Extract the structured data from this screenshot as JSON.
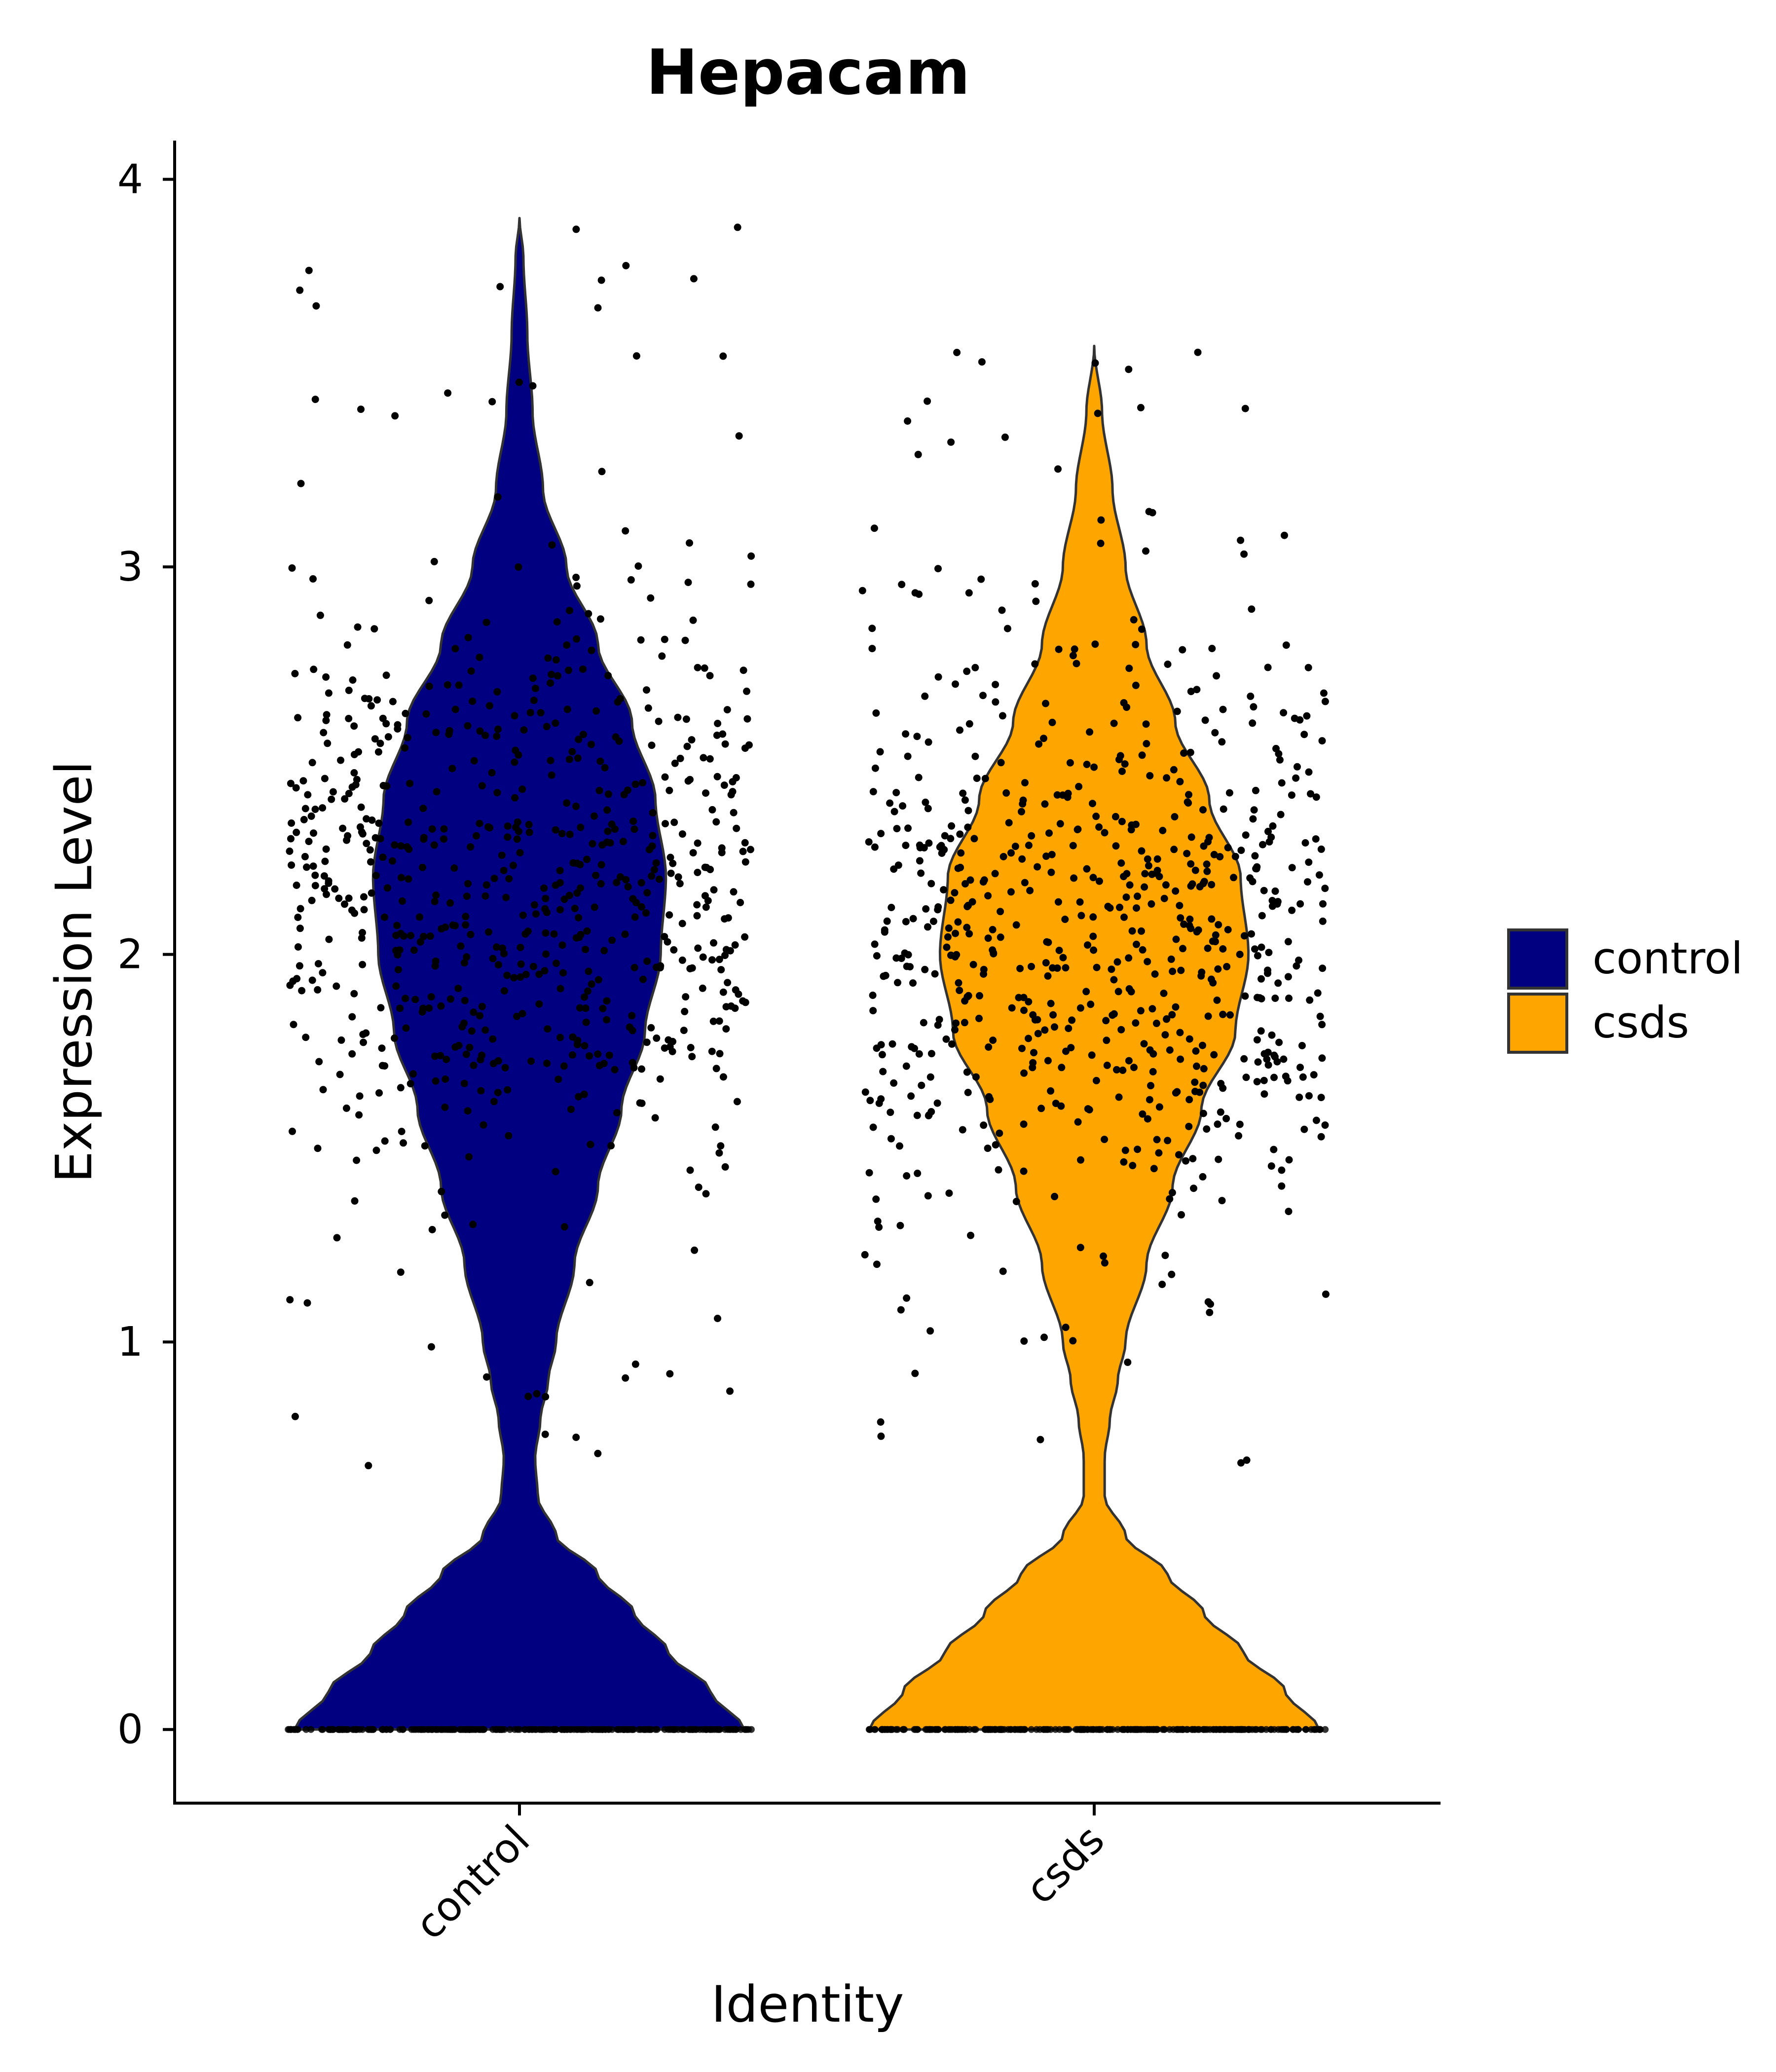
{
  "chart_data": {
    "type": "violin",
    "title": "Hepacam",
    "xlabel": "Identity",
    "ylabel": "Expression Level",
    "categories": [
      "control",
      "csds"
    ],
    "ylim": [
      -0.19,
      4.1
    ],
    "yticks": [
      0,
      1,
      2,
      3,
      4
    ],
    "series": [
      {
        "name": "control",
        "color": "#000080",
        "max": 3.9,
        "modes": [
          0,
          2.2
        ],
        "density_profile": [
          [
            0,
            0.86
          ],
          [
            0.1,
            0.73
          ],
          [
            0.2,
            0.57
          ],
          [
            0.3,
            0.44
          ],
          [
            0.4,
            0.3
          ],
          [
            0.5,
            0.14
          ],
          [
            0.6,
            0.07
          ],
          [
            0.7,
            0.06
          ],
          [
            0.8,
            0.08
          ],
          [
            0.9,
            0.11
          ],
          [
            1.0,
            0.14
          ],
          [
            1.2,
            0.21
          ],
          [
            1.4,
            0.3
          ],
          [
            1.6,
            0.39
          ],
          [
            1.8,
            0.48
          ],
          [
            2.0,
            0.54
          ],
          [
            2.2,
            0.56
          ],
          [
            2.4,
            0.52
          ],
          [
            2.6,
            0.43
          ],
          [
            2.8,
            0.3
          ],
          [
            3.0,
            0.18
          ],
          [
            3.2,
            0.09
          ],
          [
            3.4,
            0.05
          ],
          [
            3.6,
            0.03
          ],
          [
            3.8,
            0.015
          ],
          [
            3.9,
            0.0
          ]
        ]
      },
      {
        "name": "csds",
        "color": "#FFA500",
        "max": 3.57,
        "modes": [
          0,
          2.05
        ],
        "density_profile": [
          [
            0,
            0.86
          ],
          [
            0.1,
            0.73
          ],
          [
            0.2,
            0.57
          ],
          [
            0.3,
            0.42
          ],
          [
            0.4,
            0.28
          ],
          [
            0.5,
            0.12
          ],
          [
            0.6,
            0.04
          ],
          [
            0.7,
            0.04
          ],
          [
            0.8,
            0.06
          ],
          [
            0.9,
            0.09
          ],
          [
            1.0,
            0.12
          ],
          [
            1.2,
            0.2
          ],
          [
            1.4,
            0.3
          ],
          [
            1.6,
            0.41
          ],
          [
            1.8,
            0.54
          ],
          [
            2.0,
            0.59
          ],
          [
            2.2,
            0.56
          ],
          [
            2.4,
            0.44
          ],
          [
            2.6,
            0.31
          ],
          [
            2.8,
            0.2
          ],
          [
            3.0,
            0.12
          ],
          [
            3.2,
            0.07
          ],
          [
            3.4,
            0.03
          ],
          [
            3.57,
            0.0
          ]
        ]
      }
    ],
    "points": {
      "color": "#000000",
      "jitter": true
    },
    "legend": {
      "placement": "right",
      "entries": [
        "control",
        "csds"
      ]
    },
    "grid": false
  }
}
